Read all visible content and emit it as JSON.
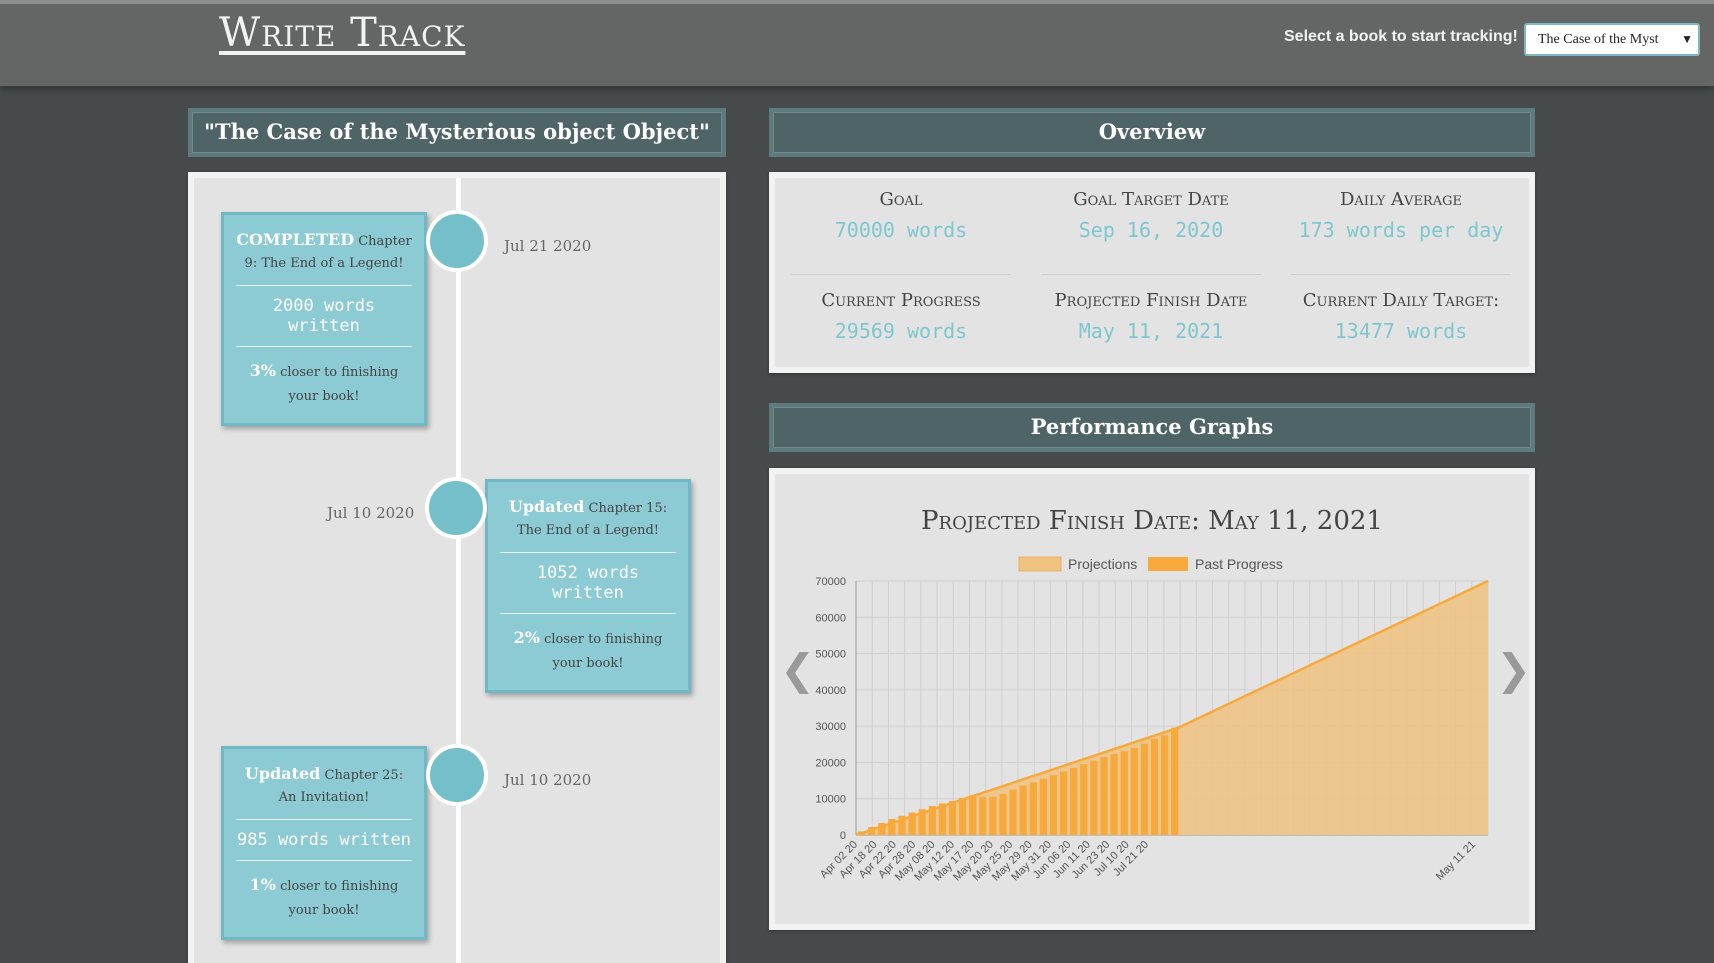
{
  "app": {
    "title": "Write Track"
  },
  "header": {
    "select_label": "Select a book to start tracking!",
    "selected_book": "The Case of the Myst"
  },
  "book_panel": {
    "title": "\"The Case of the Mysterious object Object\"",
    "entries": [
      {
        "status": "COMPLETED",
        "chapter": "Chapter 9: The End of a Legend!",
        "words": "2000 words written",
        "percent": "3%",
        "closer_text": "closer to finishing your book!",
        "date": "Jul 21 2020"
      },
      {
        "status": "Updated",
        "chapter": "Chapter 15: The End of a Legend!",
        "words": "1052 words written",
        "percent": "2%",
        "closer_text": "closer to finishing your book!",
        "date": "Jul 10 2020"
      },
      {
        "status": "Updated",
        "chapter": "Chapter 25: An Invitation!",
        "words": "985 words written",
        "percent": "1%",
        "closer_text": "closer to finishing your book!",
        "date": "Jul 10 2020"
      }
    ]
  },
  "overview": {
    "title": "Overview",
    "stats": [
      {
        "label": "Goal",
        "value": "70000 words"
      },
      {
        "label": "Goal Target Date",
        "value": "Sep 16, 2020"
      },
      {
        "label": "Daily Average",
        "value": "173 words per day"
      },
      {
        "label": "Current Progress",
        "value": "29569 words"
      },
      {
        "label": "Projected Finish Date",
        "value": "May 11, 2021"
      },
      {
        "label": "Current Daily Target:",
        "value": "13477 words"
      }
    ]
  },
  "performance": {
    "title": "Performance Graphs",
    "prev_arrow": "❮",
    "next_arrow": "❯"
  },
  "colors": {
    "accent": "#7ec7cf",
    "bar": "#f7a93b",
    "projection": "#f0c27f"
  },
  "chart_data": {
    "type": "bar",
    "title": "Projected Finish Date: May 11, 2021",
    "legend": [
      "Projections",
      "Past Progress"
    ],
    "legend_position": "top",
    "grid": true,
    "ylim": [
      0,
      70000
    ],
    "yticks": [
      0,
      10000,
      20000,
      30000,
      40000,
      50000,
      60000,
      70000
    ],
    "xtick_labels": [
      "Apr 02 20",
      "Apr 18 20",
      "Apr 22 20",
      "Apr 28 20",
      "May 08 20",
      "May 12 20",
      "May 17 20",
      "May 20 20",
      "May 25 20",
      "May 29 20",
      "May 31 20",
      "Jun 06 20",
      "Jun 11 20",
      "Jun 23 20",
      "Jul 10 20",
      "Jul 21 20",
      "May 11 21"
    ],
    "series": [
      {
        "name": "Past Progress",
        "type": "bar",
        "values": [
          1000,
          2200,
          3300,
          4400,
          5300,
          6200,
          7100,
          8000,
          8700,
          9400,
          10200,
          11000,
          10400,
          10600,
          11300,
          12500,
          13600,
          14500,
          15500,
          16500,
          17500,
          18500,
          19500,
          20500,
          21500,
          22300,
          23100,
          24000,
          25200,
          26500,
          27500,
          29569
        ]
      },
      {
        "name": "Projections",
        "type": "area",
        "points": [
          [
            "Apr 02 20",
            0
          ],
          [
            "Jul 21 20",
            29569
          ],
          [
            "May 11 21",
            70000
          ]
        ]
      }
    ]
  }
}
